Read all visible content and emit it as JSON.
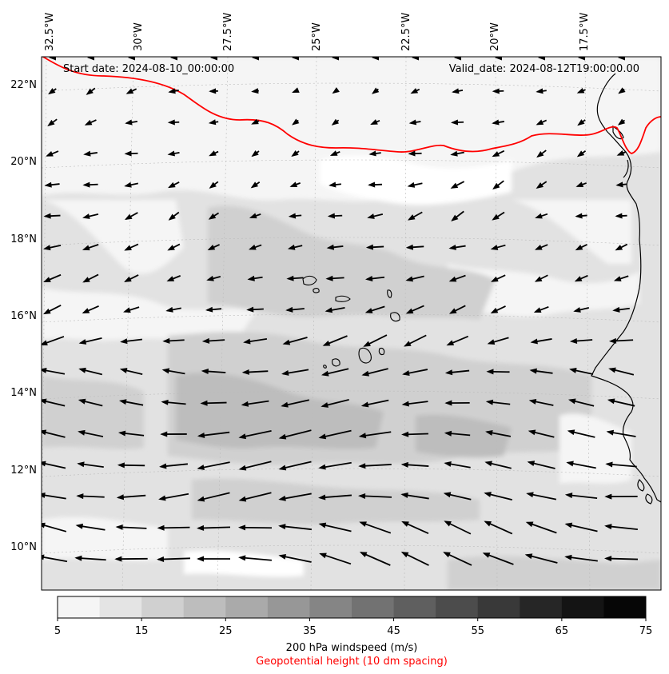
{
  "map": {
    "start_date_label": "Start date: 2024-08-10_00:00:00",
    "valid_date_label": "Valid_date: 2024-08-12T19:00:00.00",
    "lon_labels": [
      "32.5°W",
      "30°W",
      "27.5°W",
      "25°W",
      "22.5°W",
      "20°W",
      "17.5°W"
    ],
    "lat_labels": [
      "22°N",
      "20°N",
      "18°N",
      "16°N",
      "14°N",
      "12°N",
      "10°N"
    ],
    "lat_range": [
      8.9,
      22.75
    ],
    "colors": {
      "contour_line": "#ff0000",
      "coastline": "#000000",
      "arrows": "#000000",
      "gridline": "#bbbbbb"
    }
  },
  "colorbar": {
    "ticks": [
      "5",
      "15",
      "25",
      "35",
      "45",
      "55",
      "65",
      "75"
    ],
    "range": [
      5,
      75
    ],
    "step": 5,
    "colors": [
      "#f5f5f5",
      "#e4e4e4",
      "#d0d0d0",
      "#bdbdbd",
      "#aaaaaa",
      "#979797",
      "#858585",
      "#727272",
      "#5f5f5f",
      "#4c4c4c",
      "#393939",
      "#262626",
      "#141414",
      "#060606"
    ],
    "label": "200 hPa windspeed (m/s)",
    "sublabel": "Geopotential height (10 dm spacing)"
  }
}
